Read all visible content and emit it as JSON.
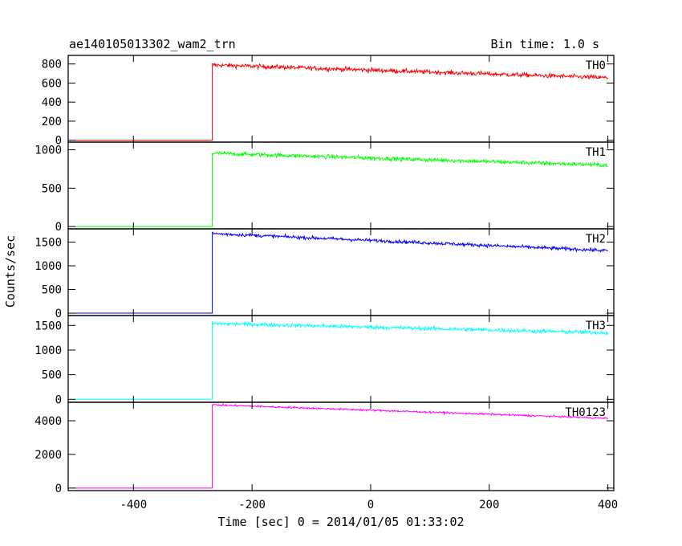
{
  "chart_data": {
    "type": "line",
    "title": "ae140105013302_wam2_trn",
    "subtitle": "Bin time: 1.0 s",
    "xlabel": "Time [sec] 0 = 2014/01/05 01:33:02",
    "ylabel": "Counts/sec",
    "xlim": [
      -510,
      410
    ],
    "x_ticks": [
      "-400",
      "-200",
      "0",
      "200",
      "400"
    ],
    "x_tick_values": [
      -400,
      -200,
      0,
      200,
      400
    ],
    "x_start": -500,
    "x_end": 400,
    "step_time": -267,
    "grid": false,
    "legend": "none",
    "panels": [
      {
        "name": "TH0",
        "color": "#ff0000",
        "ylim": [
          -20,
          890
        ],
        "y_ticks": [
          "0",
          "200",
          "400",
          "600",
          "800"
        ],
        "y_tick_values": [
          0,
          200,
          400,
          600,
          800
        ],
        "pre_level": 0,
        "post_start": 790,
        "post_end": 655,
        "noise": 26
      },
      {
        "name": "TH1",
        "color": "#00ff00",
        "ylim": [
          -30,
          1100
        ],
        "y_ticks": [
          "0",
          "500",
          "1000"
        ],
        "y_tick_values": [
          0,
          500,
          1000
        ],
        "pre_level": 0,
        "post_start": 955,
        "post_end": 800,
        "noise": 30
      },
      {
        "name": "TH2",
        "color": "#0000ff",
        "ylim": [
          -50,
          1780
        ],
        "y_ticks": [
          "0",
          "500",
          "1000",
          "1500"
        ],
        "y_tick_values": [
          0,
          500,
          1000,
          1500
        ],
        "pre_level": 0,
        "post_start": 1680,
        "post_end": 1320,
        "noise": 40
      },
      {
        "name": "TH3",
        "color": "#00ffff",
        "ylim": [
          -60,
          1700
        ],
        "y_ticks": [
          "0",
          "500",
          "1000",
          "1500"
        ],
        "y_tick_values": [
          0,
          500,
          1000,
          1500
        ],
        "pre_level": 0,
        "post_start": 1540,
        "post_end": 1350,
        "noise": 45
      },
      {
        "name": "TH0123",
        "color": "#ff00ff",
        "ylim": [
          -150,
          5100
        ],
        "y_ticks": [
          "0",
          "2000",
          "4000"
        ],
        "y_tick_values": [
          0,
          2000,
          4000
        ],
        "pre_level": 0,
        "post_start": 4950,
        "post_end": 4150,
        "noise": 60
      }
    ]
  }
}
